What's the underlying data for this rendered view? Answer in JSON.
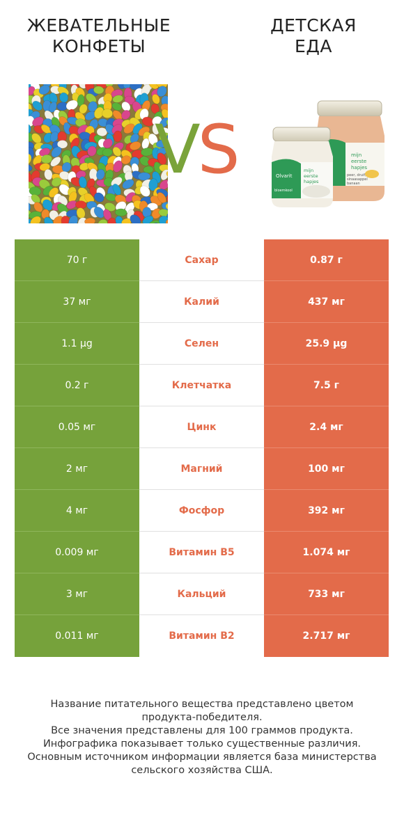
{
  "header": {
    "left_title": [
      "ЖЕВАТЕЛЬНЫЕ",
      "КОНФЕТЫ"
    ],
    "right_title": [
      "ДЕТСКАЯ",
      "ЕДА"
    ],
    "vs_v": "V",
    "vs_s": "S"
  },
  "colors": {
    "winner_left": "#76a23b",
    "winner_right": "#e36b4a"
  },
  "rows": [
    {
      "left": "70 г",
      "nutrient": "Сахар",
      "right": "0.87 г",
      "winner": "right"
    },
    {
      "left": "37 мг",
      "nutrient": "Калий",
      "right": "437 мг",
      "winner": "right"
    },
    {
      "left": "1.1 µg",
      "nutrient": "Селен",
      "right": "25.9 µg",
      "winner": "right"
    },
    {
      "left": "0.2 г",
      "nutrient": "Клетчатка",
      "right": "7.5 г",
      "winner": "right"
    },
    {
      "left": "0.05 мг",
      "nutrient": "Цинк",
      "right": "2.4 мг",
      "winner": "right"
    },
    {
      "left": "2 мг",
      "nutrient": "Магний",
      "right": "100 мг",
      "winner": "right"
    },
    {
      "left": "4 мг",
      "nutrient": "Фосфор",
      "right": "392 мг",
      "winner": "right"
    },
    {
      "left": "0.009 мг",
      "nutrient": "Витамин B5",
      "right": "1.074 мг",
      "winner": "right"
    },
    {
      "left": "3 мг",
      "nutrient": "Кальций",
      "right": "733 мг",
      "winner": "right"
    },
    {
      "left": "0.011 мг",
      "nutrient": "Витамин B2",
      "right": "2.717 мг",
      "winner": "right"
    }
  ],
  "footnote": [
    "Название питательного вещества представлено цветом",
    "продукта-победителя.",
    "Все значения представлены для 100 граммов продукта.",
    "Инфографика показывает только существенные различия.",
    "Основным источником информации является база министерства",
    "сельского хозяйства США."
  ],
  "images": {
    "left_icon": "jelly-beans-image",
    "right_icon": "baby-food-jars-image",
    "right_label_lines": [
      "Olvarit",
      "mijn",
      "eerste",
      "hapjes",
      "bloemkool",
      "peer, druif,",
      "sinaasappel",
      "banaan"
    ]
  }
}
